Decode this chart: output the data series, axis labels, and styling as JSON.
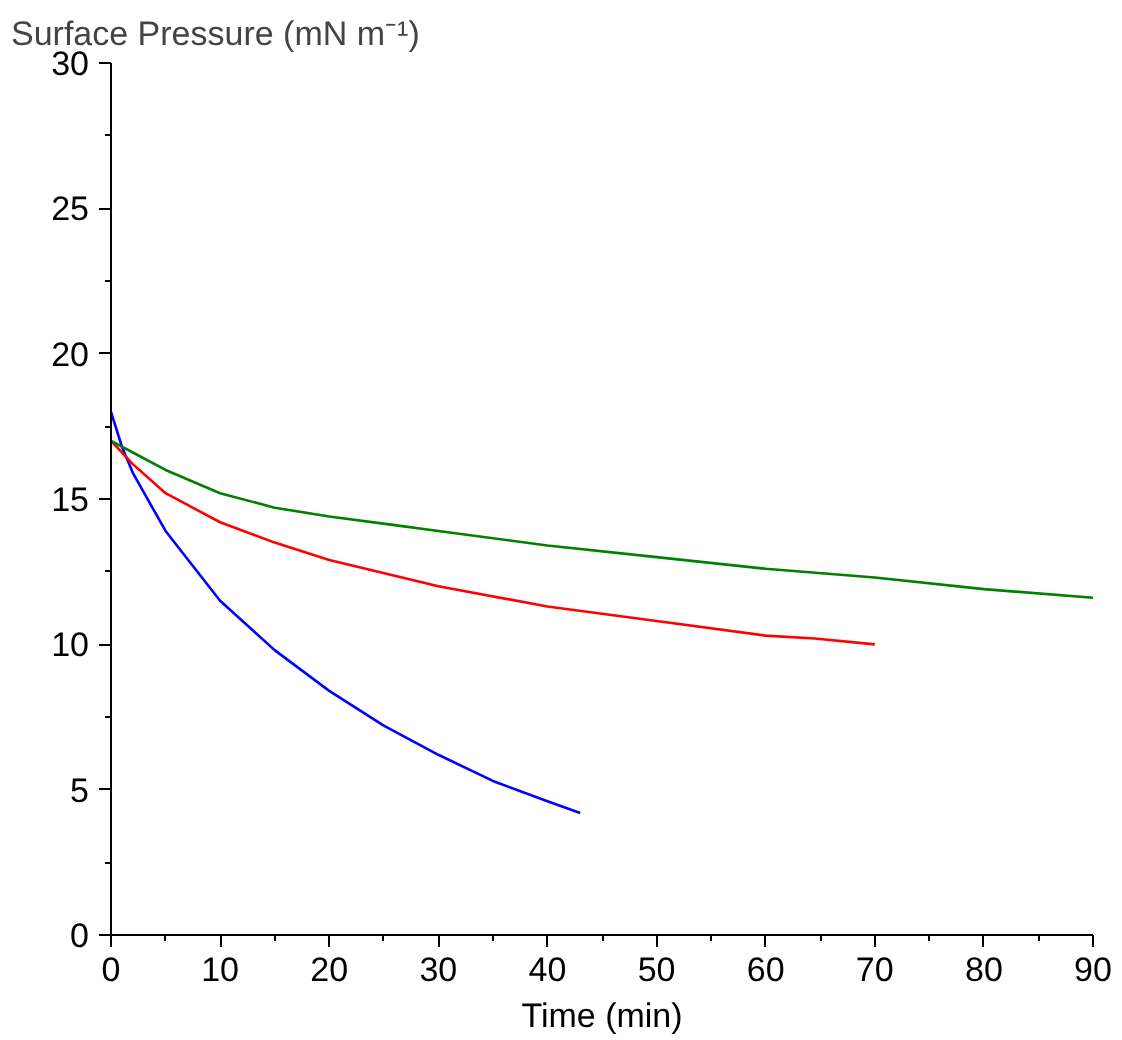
{
  "chart_data": {
    "type": "line",
    "xlabel": "Time (min)",
    "ylabel": "Surface Pressure (mN m⁻¹)",
    "xlim": [
      0,
      90
    ],
    "xticks": [
      0,
      10,
      20,
      30,
      40,
      50,
      60,
      70,
      80,
      90
    ],
    "ylim": [
      0,
      30
    ],
    "yticks": [
      0,
      5,
      10,
      15,
      20,
      25,
      30
    ],
    "grid": false,
    "marker": "none",
    "line_style": "solid",
    "series": [
      {
        "color": "#0000ff",
        "x": [
          0,
          1,
          2,
          5,
          10,
          15,
          20,
          25,
          30,
          35,
          40,
          43
        ],
        "values": [
          18.0,
          16.8,
          15.9,
          13.9,
          11.5,
          9.8,
          8.4,
          7.2,
          6.2,
          5.3,
          4.6,
          4.2
        ]
      },
      {
        "color": "#ff0000",
        "x": [
          0,
          2,
          5,
          10,
          15,
          20,
          30,
          40,
          50,
          60,
          64.5,
          70
        ],
        "values": [
          17.0,
          16.2,
          15.2,
          14.2,
          13.5,
          12.9,
          12.0,
          11.3,
          10.8,
          10.3,
          10.2,
          10.0
        ]
      },
      {
        "color": "#008000",
        "x": [
          0,
          2,
          5,
          10,
          15,
          20,
          26,
          30,
          40,
          50,
          60,
          70,
          80,
          90
        ],
        "values": [
          17.0,
          16.6,
          16.0,
          15.2,
          14.7,
          14.4,
          14.1,
          13.9,
          13.4,
          13.0,
          12.6,
          12.3,
          11.9,
          11.6
        ]
      }
    ]
  }
}
